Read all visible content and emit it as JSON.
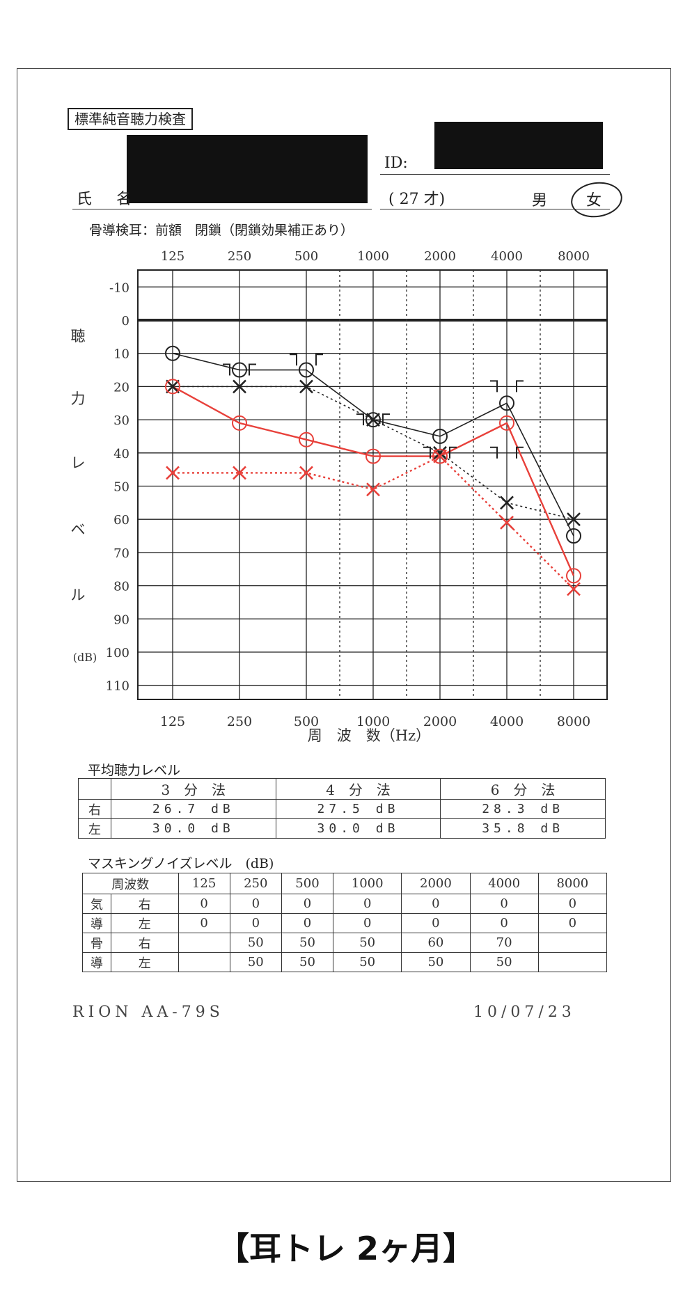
{
  "header": {
    "title": "標準純音聴力検査",
    "id_label": "ID:",
    "name_label": "氏 名",
    "age": "( 27 才)",
    "sex_male": "男",
    "sex_female": "女",
    "bone_note": "骨導検耳：前額　閉鎖（閉鎖効果補正あり）"
  },
  "chart_data": {
    "type": "line",
    "x": [
      125,
      250,
      500,
      1000,
      2000,
      4000,
      8000
    ],
    "x_tick_labels": [
      "125",
      "250",
      "500",
      "1000",
      "2000",
      "4000",
      "8000"
    ],
    "y_tick_labels": [
      "-10",
      "0",
      "10",
      "20",
      "30",
      "40",
      "50",
      "60",
      "70",
      "80",
      "90",
      "100",
      "110"
    ],
    "ylim": [
      -15,
      115
    ],
    "y_inverted": true,
    "xlabel": "周　波　数（Hz）",
    "ylabel_chars": [
      "聴",
      "力",
      "レ",
      "ベ",
      "ル",
      "(dB)"
    ],
    "series": [
      {
        "color": "#222222",
        "marker": "circle",
        "dashed": false,
        "values": [
          10,
          15,
          15,
          30,
          35,
          25,
          65
        ]
      },
      {
        "color": "#222222",
        "marker": "cross",
        "dashed": true,
        "values": [
          20,
          20,
          20,
          30,
          40,
          55,
          60
        ]
      },
      {
        "color": "#e8403a",
        "marker": "circle",
        "dashed": false,
        "values": [
          20,
          31,
          36,
          41,
          41,
          31,
          77
        ]
      },
      {
        "color": "#e8403a",
        "marker": "cross",
        "dashed": true,
        "values": [
          46,
          46,
          46,
          51,
          41,
          61,
          81
        ]
      }
    ],
    "bone_brackets": [
      {
        "freq": 250,
        "value": 15
      },
      {
        "freq": 500,
        "value": 12
      },
      {
        "freq": 1000,
        "value": 30
      },
      {
        "freq": 2000,
        "value": 40
      },
      {
        "freq": 4000,
        "value": 20
      },
      {
        "freq": 4000,
        "value": 40
      }
    ]
  },
  "avg": {
    "title": "平均聴力レベル",
    "headers": [
      "3　分　法",
      "4　分　法",
      "6　分　法"
    ],
    "rows": [
      {
        "label": "右",
        "values": [
          "26.7 dB",
          "27.5 dB",
          "28.3 dB"
        ]
      },
      {
        "label": "左",
        "values": [
          "30.0 dB",
          "30.0 dB",
          "35.8 dB"
        ]
      }
    ]
  },
  "masking": {
    "title": "マスキングノイズレベル　(dB)",
    "freq_header": "周波数",
    "freqs": [
      "125",
      "250",
      "500",
      "1000",
      "2000",
      "4000",
      "8000"
    ],
    "air_label": [
      "気",
      "導"
    ],
    "bone_label": [
      "骨",
      "導"
    ],
    "rows": [
      {
        "side": "右",
        "values": [
          "0",
          "0",
          "0",
          "0",
          "0",
          "0",
          "0"
        ]
      },
      {
        "side": "左",
        "values": [
          "0",
          "0",
          "0",
          "0",
          "0",
          "0",
          "0"
        ]
      },
      {
        "side": "右",
        "values": [
          "",
          "50",
          "50",
          "50",
          "60",
          "70",
          ""
        ]
      },
      {
        "side": "左",
        "values": [
          "",
          "50",
          "50",
          "50",
          "50",
          "50",
          ""
        ]
      }
    ]
  },
  "footer": {
    "device": "RION AA-79S",
    "date": "10/07/23"
  },
  "caption": "【耳トレ 2ヶ月】"
}
